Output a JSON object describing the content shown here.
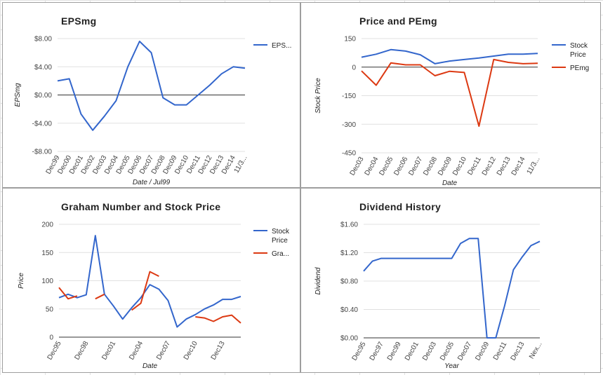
{
  "chart_data": [
    {
      "id": "eps",
      "type": "line",
      "title": "EPSmg",
      "xlabel": "Date / Jul99",
      "ylabel": "EPSmg",
      "ylim": [
        -8,
        8
      ],
      "yticks": [
        8,
        4,
        0,
        -4,
        -8
      ],
      "ytick_labels": [
        "$8.00",
        "$4.00",
        "$0.00",
        "-$4.00",
        "-$8.00"
      ],
      "x_count": 17,
      "xtick_positions": [
        0,
        1,
        2,
        3,
        4,
        5,
        6,
        7,
        8,
        9,
        10,
        11,
        12,
        13,
        14,
        15,
        16
      ],
      "xtick_labels": [
        "Dec99",
        "Dec00",
        "Dec01",
        "Dec02",
        "Dec03",
        "Dec04",
        "Dec05",
        "Dec06",
        "Dec07",
        "Dec08",
        "Dec09",
        "Dec10",
        "Dec11",
        "Dec12",
        "Dec13",
        "Dec14",
        "11/3..."
      ],
      "series": [
        {
          "name": "EPS...",
          "color": "#3366cc",
          "values": [
            2.0,
            2.3,
            -2.7,
            -5.0,
            -3.0,
            -0.8,
            4.0,
            7.6,
            6.0,
            -0.4,
            -1.4,
            -1.4,
            0.0,
            1.4,
            3.0,
            4.0,
            3.8
          ]
        }
      ],
      "legend": {
        "position": "right"
      }
    },
    {
      "id": "price-pe",
      "type": "line",
      "title": "Price and PEmg",
      "xlabel": "Date",
      "ylabel": "Stock Price",
      "ylim": [
        -450,
        150
      ],
      "yticks": [
        150,
        0,
        -150,
        -300,
        -450
      ],
      "ytick_labels": [
        "150",
        "0",
        "-150",
        "-300",
        "-450"
      ],
      "x_count": 13,
      "xtick_positions": [
        0,
        1,
        2,
        3,
        4,
        5,
        6,
        7,
        8,
        9,
        10,
        11,
        12
      ],
      "xtick_labels": [
        "Dec03",
        "Dec04",
        "Dec05",
        "Dec06",
        "Dec07",
        "Dec08",
        "Dec09",
        "Dec10",
        "Dec11",
        "Dec12",
        "Dec13",
        "Dec14",
        "11/3..."
      ],
      "series": [
        {
          "name": "Stock Price",
          "color": "#3366cc",
          "values": [
            52,
            68,
            92,
            84,
            65,
            18,
            32,
            40,
            48,
            58,
            68,
            68,
            72
          ]
        },
        {
          "name": "PEmg",
          "color": "#dc3912",
          "values": [
            -20,
            -95,
            22,
            12,
            12,
            -45,
            -22,
            -28,
            -310,
            40,
            25,
            18,
            20
          ]
        }
      ],
      "legend": {
        "position": "right"
      }
    },
    {
      "id": "graham",
      "type": "line",
      "title": "Graham Number and Stock Price",
      "xlabel": "Date",
      "ylabel": "Price",
      "ylim": [
        0,
        200
      ],
      "yticks": [
        200,
        150,
        100,
        50,
        0
      ],
      "ytick_labels": [
        "200",
        "150",
        "100",
        "50",
        "0"
      ],
      "x_count": 21,
      "xtick_positions": [
        0,
        3,
        6,
        9,
        12,
        15,
        18
      ],
      "xtick_labels": [
        "Dec95",
        "Dec98",
        "Dec01",
        "Dec04",
        "Dec07",
        "Dec10",
        "Dec13"
      ],
      "series": [
        {
          "name": "Stock Price",
          "color": "#3366cc",
          "values": [
            70,
            76,
            70,
            75,
            180,
            76,
            55,
            32,
            52,
            70,
            93,
            85,
            65,
            18,
            32,
            40,
            50,
            57,
            67,
            67,
            72
          ]
        },
        {
          "name": "Gra...",
          "color": "#dc3912",
          "values": [
            88,
            68,
            73,
            null,
            68,
            76,
            null,
            null,
            48,
            60,
            116,
            108,
            null,
            null,
            null,
            36,
            34,
            28,
            36,
            39,
            25
          ]
        }
      ],
      "legend": {
        "position": "right"
      }
    },
    {
      "id": "dividend",
      "type": "line",
      "title": "Dividend History",
      "xlabel": "Year",
      "ylabel": "Dividend",
      "ylim": [
        0,
        1.6
      ],
      "yticks": [
        1.6,
        1.2,
        0.8,
        0.4,
        0
      ],
      "ytick_labels": [
        "$1.60",
        "$1.20",
        "$0.80",
        "$0.40",
        "$0.00"
      ],
      "x_count": 21,
      "xtick_positions": [
        0,
        2,
        4,
        6,
        8,
        10,
        12,
        14,
        16,
        18,
        20
      ],
      "xtick_labels": [
        "Dec95",
        "Dec97",
        "Dec99",
        "Dec01",
        "Dec03",
        "Dec05",
        "Dec07",
        "Dec09",
        "Dec11",
        "Dec13",
        "Nex..."
      ],
      "series": [
        {
          "name": "Dividend",
          "color": "#3366cc",
          "values": [
            0.94,
            1.08,
            1.12,
            1.12,
            1.12,
            1.12,
            1.12,
            1.12,
            1.12,
            1.12,
            1.12,
            1.33,
            1.4,
            1.4,
            0.0,
            0.0,
            0.45,
            0.96,
            1.14,
            1.3,
            1.36
          ]
        }
      ]
    }
  ]
}
